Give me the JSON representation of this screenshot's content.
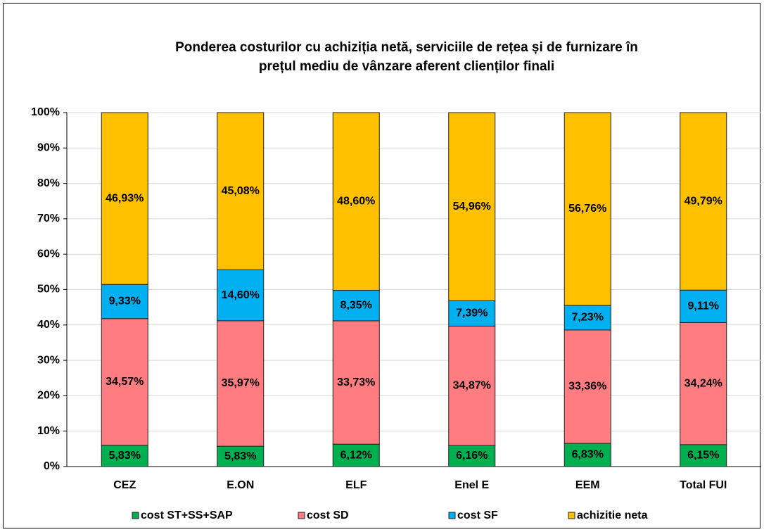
{
  "chart_data": {
    "type": "stacked_percent_bar",
    "title": [
      "Ponderea costurilor cu achiziția netă, serviciile de rețea și de furnizare în",
      "prețul mediu de vânzare aferent clienților finali"
    ],
    "categories": [
      "CEZ",
      "E.ON",
      "ELF",
      "Enel E",
      "EEM",
      "Total FUI"
    ],
    "series": [
      {
        "name": "cost ST+SS+SAP",
        "color": "#00b050",
        "values": [
          5.83,
          5.83,
          6.12,
          6.16,
          6.83,
          6.15
        ],
        "value_labels": [
          "5,83%",
          "5,83%",
          "6,12%",
          "6,16%",
          "6,83%",
          "6,15%"
        ]
      },
      {
        "name": "cost SD",
        "color": "#ff7c80",
        "values": [
          34.57,
          35.97,
          33.73,
          34.87,
          33.36,
          34.24
        ],
        "value_labels": [
          "34,57%",
          "35,97%",
          "33,73%",
          "34,87%",
          "33,36%",
          "34,24%"
        ]
      },
      {
        "name": "cost SF",
        "color": "#00b0f0",
        "values": [
          9.33,
          14.6,
          8.35,
          7.39,
          7.23,
          9.11
        ],
        "value_labels": [
          "9,33%",
          "14,60%",
          "8,35%",
          "7,39%",
          "7,23%",
          "9,11%"
        ]
      },
      {
        "name": "achizitie neta",
        "color": "#ffc000",
        "values": [
          46.93,
          45.08,
          48.6,
          54.96,
          56.76,
          49.79
        ],
        "value_labels": [
          "46,93%",
          "45,08%",
          "48,60%",
          "54,96%",
          "56,76%",
          "49,79%"
        ]
      }
    ],
    "ylim": [
      0,
      100
    ],
    "yticks": [
      {
        "value": 0,
        "label": "0%"
      },
      {
        "value": 10,
        "label": "10%"
      },
      {
        "value": 20,
        "label": "20%"
      },
      {
        "value": 30,
        "label": "30%"
      },
      {
        "value": 40,
        "label": "40%"
      },
      {
        "value": 50,
        "label": "50%"
      },
      {
        "value": 60,
        "label": "60%"
      },
      {
        "value": 70,
        "label": "70%"
      },
      {
        "value": 80,
        "label": "80%"
      },
      {
        "value": 90,
        "label": "90%"
      },
      {
        "value": 100,
        "label": "100%"
      }
    ],
    "grid": true,
    "legend": "bottom"
  }
}
